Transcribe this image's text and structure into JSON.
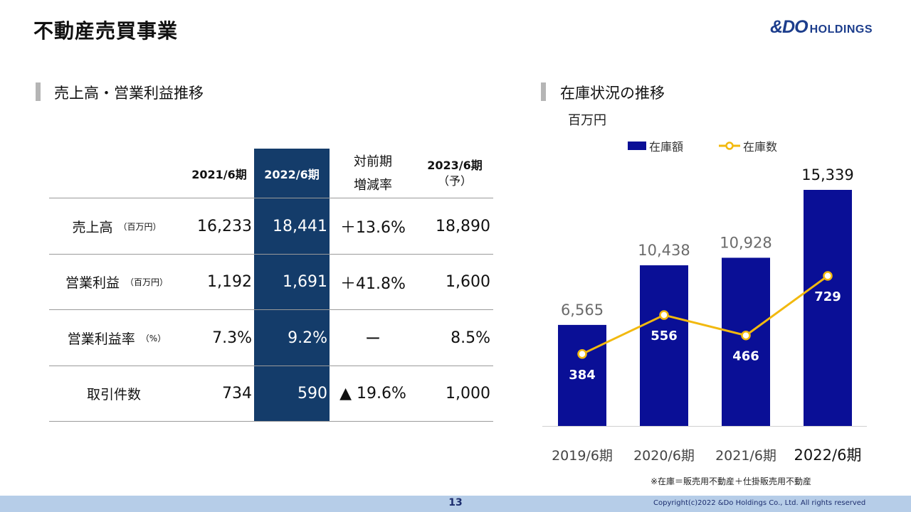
{
  "page": {
    "title": "不動産売買事業",
    "page_number": "13"
  },
  "logo": {
    "mark": "&DO",
    "word": "HOLDINGS"
  },
  "left_section": {
    "heading": "売上高・営業利益推移"
  },
  "right_section": {
    "heading": "在庫状況の推移",
    "unit": "百万円"
  },
  "table": {
    "headers": {
      "col_2021": "2021/6期",
      "col_2022": "2022/6期",
      "col_change_line1": "対前期",
      "col_change_line2": "増減率",
      "col_2023_line1": "2023/6期",
      "col_2023_line2": "（予）"
    },
    "rows": [
      {
        "label": "売上高",
        "unit": "（百万円）",
        "v2021": "16,233",
        "v2022": "18,441",
        "change": "＋13.6%",
        "v2023": "18,890"
      },
      {
        "label": "営業利益",
        "unit": "（百万円）",
        "v2021": "1,192",
        "v2022": "1,691",
        "change": "＋41.8%",
        "v2023": "1,600"
      },
      {
        "label": "営業利益率",
        "unit": "（%）",
        "v2021": "7.3%",
        "v2022": "9.2%",
        "change": "ー",
        "v2023": "8.5%"
      },
      {
        "label": "取引件数",
        "unit": "",
        "v2021": "734",
        "v2022": "590",
        "change": "▲ 19.6%",
        "v2023": "1,000"
      }
    ],
    "highlight_color": "#143c6a"
  },
  "chart_data": {
    "type": "bar",
    "categories": [
      "2019/6期",
      "2020/6期",
      "2021/6期",
      "2022/6期"
    ],
    "series": [
      {
        "name": "在庫額",
        "type": "bar",
        "values": [
          6565,
          10438,
          10928,
          15339
        ],
        "labels": [
          "6,565",
          "10,438",
          "10,928",
          "15,339"
        ],
        "color": "#0a0f96"
      },
      {
        "name": "在庫数",
        "type": "line",
        "values": [
          384,
          556,
          466,
          729
        ],
        "labels": [
          "384",
          "556",
          "466",
          "729"
        ],
        "color": "#f2b90f"
      }
    ],
    "ylabel": "百万円",
    "legend": "top",
    "grid": false,
    "ylim": [
      0,
      15339
    ]
  },
  "footnote": "※在庫＝販売用不動産＋仕掛販売用不動産",
  "copyright": "Copyright(c)2022 &Do Holdings Co., Ltd. All rights reserved"
}
